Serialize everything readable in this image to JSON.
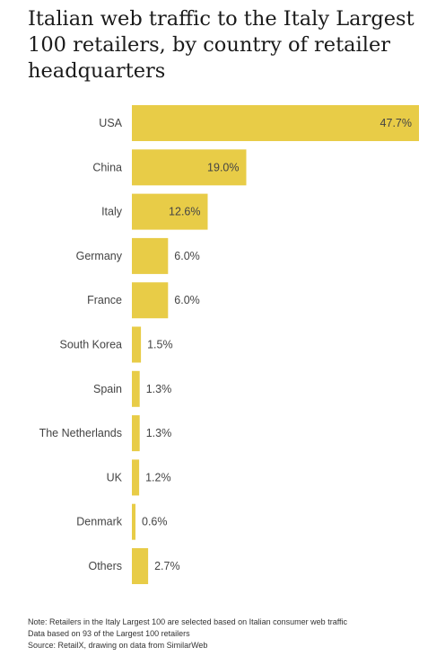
{
  "chart_data": {
    "type": "bar",
    "orientation": "horizontal",
    "title": "Italian web traffic to the Italy Largest 100 retailers, by country of retailer headquarters",
    "categories": [
      "USA",
      "China",
      "Italy",
      "Germany",
      "France",
      "South Korea",
      "Spain",
      "The Netherlands",
      "UK",
      "Denmark",
      "Others"
    ],
    "values": [
      47.7,
      19.0,
      12.6,
      6.0,
      6.0,
      1.5,
      1.3,
      1.3,
      1.2,
      0.6,
      2.7
    ],
    "value_labels": [
      "47.7%",
      "19.0%",
      "12.6%",
      "6.0%",
      "6.0%",
      "1.5%",
      "1.3%",
      "1.3%",
      "1.2%",
      "0.6%",
      "2.7%"
    ],
    "xlim": [
      0,
      47.7
    ],
    "grid": false,
    "legend": "none",
    "bar_color": "#e8cc47"
  },
  "notes": {
    "note": "Note: Retailers in the Italy Largest 100 are selected based on Italian consumer web traffic",
    "data_basis": "Data based on 93 of the Largest 100 retailers",
    "source": "Source: RetailX, drawing on data from SimilarWeb"
  }
}
